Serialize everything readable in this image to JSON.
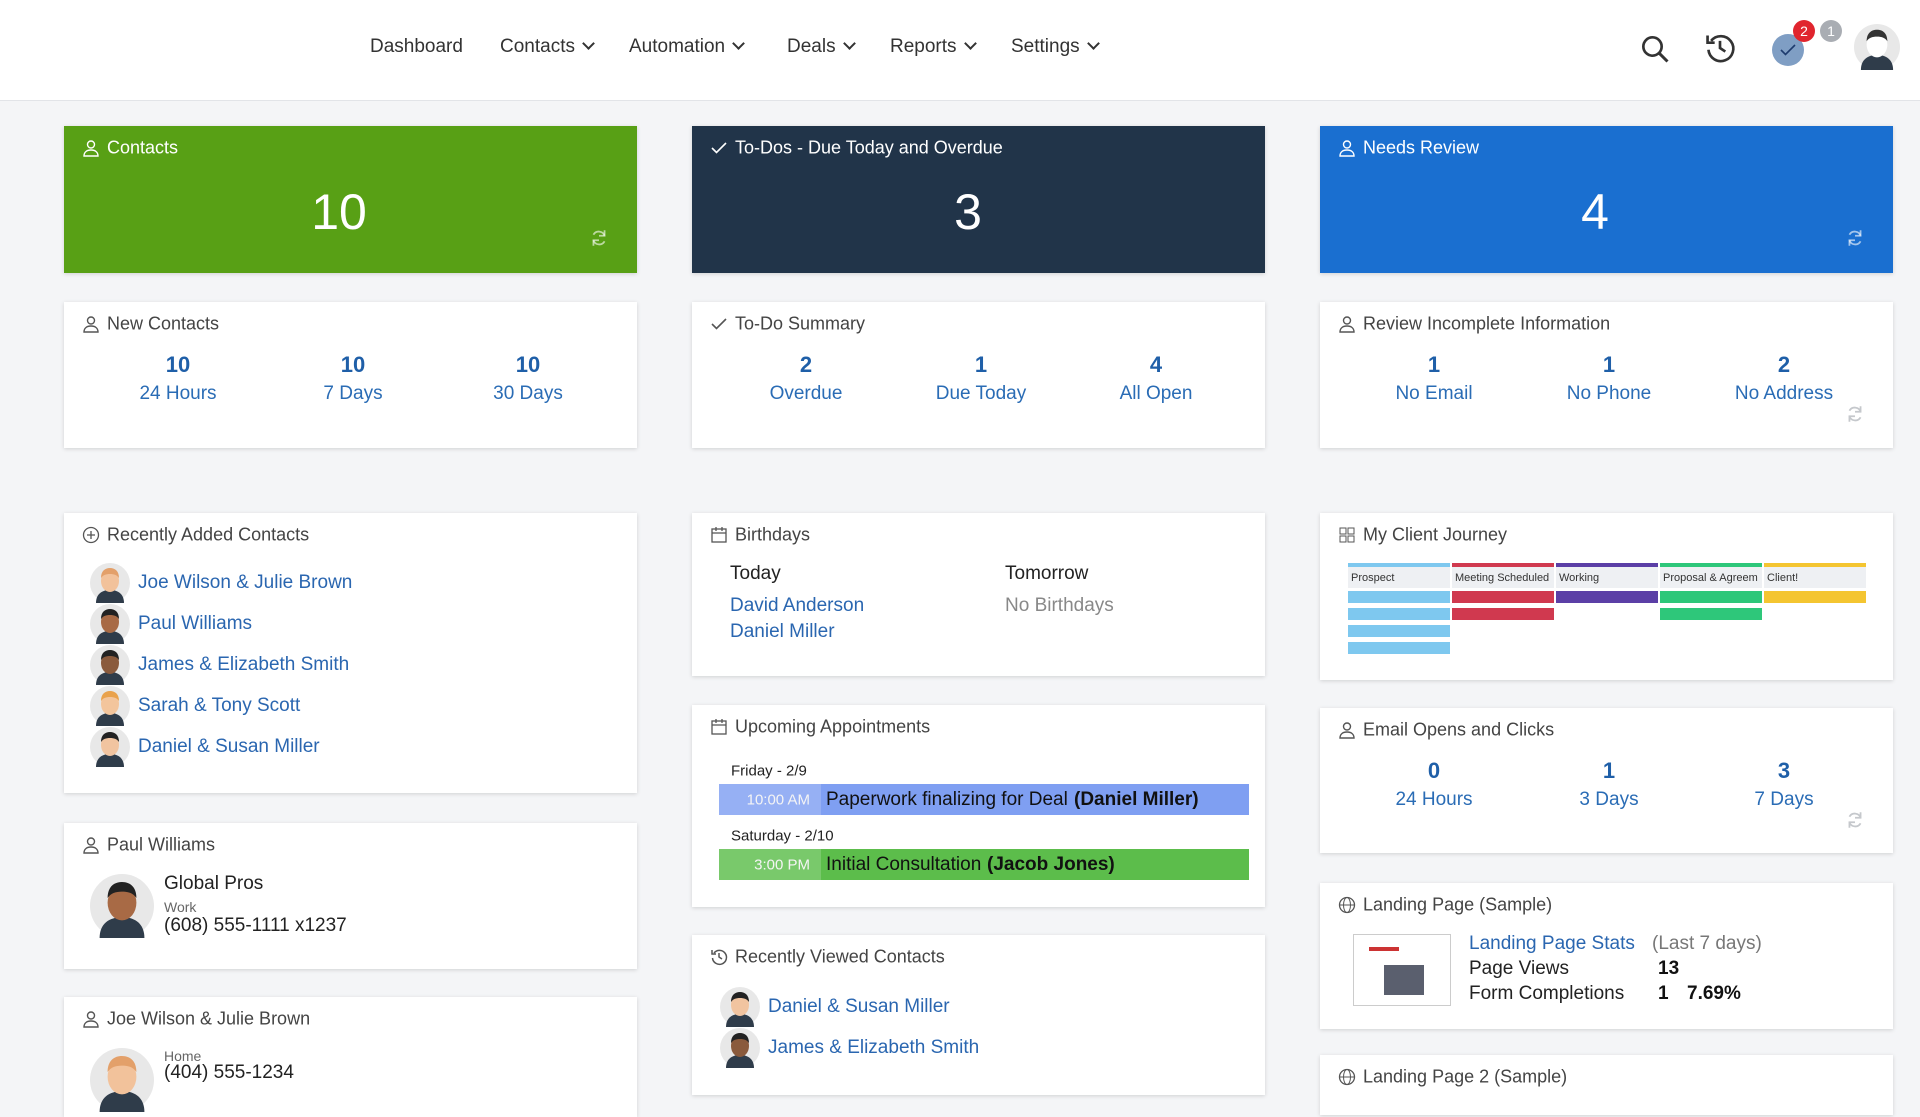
{
  "nav": {
    "menu": [
      "Dashboard",
      "Contacts",
      "Automation",
      "Deals",
      "Reports",
      "Settings"
    ],
    "badges": [
      2,
      1
    ]
  },
  "tiles": [
    {
      "title": "Contacts",
      "value": 10,
      "color": "#58a015"
    },
    {
      "title": "To-Dos - Due Today and Overdue",
      "value": 3,
      "color": "#213449"
    },
    {
      "title": "Needs Review",
      "value": 4,
      "color": "#1a6fd0"
    }
  ],
  "stat_cards": [
    {
      "title": "New Contacts",
      "stats": [
        {
          "value": 10,
          "label": "24 Hours"
        },
        {
          "value": 10,
          "label": "7 Days"
        },
        {
          "value": 10,
          "label": "30 Days"
        }
      ]
    },
    {
      "title": "To-Do Summary",
      "stats": [
        {
          "value": 2,
          "label": "Overdue"
        },
        {
          "value": 1,
          "label": "Due Today"
        },
        {
          "value": 4,
          "label": "All Open"
        }
      ]
    },
    {
      "title": "Review Incomplete Information",
      "stats": [
        {
          "value": 1,
          "label": "No Email"
        },
        {
          "value": 1,
          "label": "No Phone"
        },
        {
          "value": 2,
          "label": "No Address"
        }
      ]
    },
    {
      "title": "Email Opens and Clicks",
      "stats": [
        {
          "value": 0,
          "label": "24 Hours"
        },
        {
          "value": 1,
          "label": "3 Days"
        },
        {
          "value": 3,
          "label": "7 Days"
        }
      ]
    }
  ],
  "recently_added": {
    "title": "Recently Added Contacts",
    "contacts": [
      "Joe Wilson & Julie Brown",
      "Paul Williams",
      "James & Elizabeth Smith",
      "Sarah & Tony Scott",
      "Daniel & Susan Miller"
    ]
  },
  "contact_cards": [
    {
      "name": "Paul Williams",
      "company": "Global Pros",
      "phone_type": "Work",
      "phone": "(608) 555-1111 x1237"
    },
    {
      "name": "Joe Wilson & Julie Brown",
      "phone_type": "Home",
      "phone": "(404) 555-1234"
    }
  ],
  "birthdays": {
    "title": "Birthdays",
    "today_label": "Today",
    "today": [
      "David Anderson",
      "Daniel Miller"
    ],
    "tomorrow_label": "Tomorrow",
    "tomorrow": "No Birthdays"
  },
  "appointments": {
    "title": "Upcoming Appointments",
    "items": [
      {
        "date": "Friday - 2/9",
        "time": "10:00 AM",
        "subject": "Paperwork finalizing for Deal",
        "contact": "(Daniel Miller)",
        "color": "#7f9ff2"
      },
      {
        "date": "Saturday - 2/10",
        "time": "3:00 PM",
        "subject": "Initial Consultation",
        "contact": "(Jacob Jones)",
        "color": "#5cbd4b"
      }
    ]
  },
  "recently_viewed": {
    "title": "Recently Viewed Contacts",
    "contacts": [
      "Daniel & Susan Miller",
      "James & Elizabeth Smith"
    ]
  },
  "client_journey": {
    "title": "My Client Journey",
    "stages": [
      {
        "name": "Prospect",
        "color": "#7ec8ef",
        "count": 4
      },
      {
        "name": "Meeting Scheduled",
        "color": "#d0394f",
        "count": 2
      },
      {
        "name": "Working",
        "color": "#5b3fa6",
        "count": 1
      },
      {
        "name": "Proposal & Agreem",
        "color": "#2ec77a",
        "count": 2
      },
      {
        "name": "Client!",
        "color": "#f4c531",
        "count": 1
      }
    ]
  },
  "landing_pages": [
    {
      "title": "Landing Page (Sample)",
      "stats_link": "Landing Page Stats",
      "period": "(Last 7 days)",
      "views_label": "Page Views",
      "views": 13,
      "completions_label": "Form Completions",
      "completions": 1,
      "rate": "7.69%"
    },
    {
      "title": "Landing Page 2 (Sample)"
    }
  ]
}
